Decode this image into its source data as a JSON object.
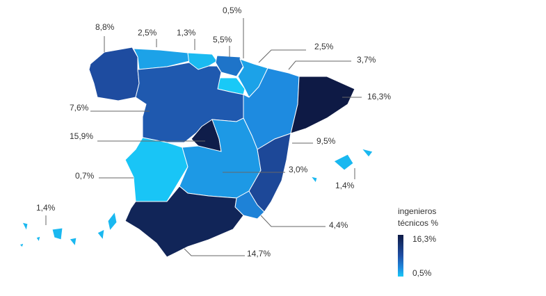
{
  "chart_data": {
    "type": "choropleth",
    "values": [
      8.8,
      2.5,
      1.3,
      5.5,
      0.5,
      2.5,
      3.7,
      16.3,
      7.6,
      15.9,
      0.7,
      3.0,
      9.5,
      1.4,
      4.4,
      14.7,
      1.4
    ],
    "value_labels": [
      "8,8%",
      "2,5%",
      "1,3%",
      "5,5%",
      "0,5%",
      "2,5%",
      "3,7%",
      "16,3%",
      "7,6%",
      "15,9%",
      "0,7%",
      "3,0%",
      "9,5%",
      "1,4%",
      "4,4%",
      "14,7%",
      "1,4%"
    ],
    "legend": {
      "title": "ingenieros técnicos %",
      "scale": [
        {
          "value": 0.5,
          "label": "0,5%"
        },
        {
          "value": 16.3,
          "label": "16,3%"
        }
      ]
    }
  }
}
